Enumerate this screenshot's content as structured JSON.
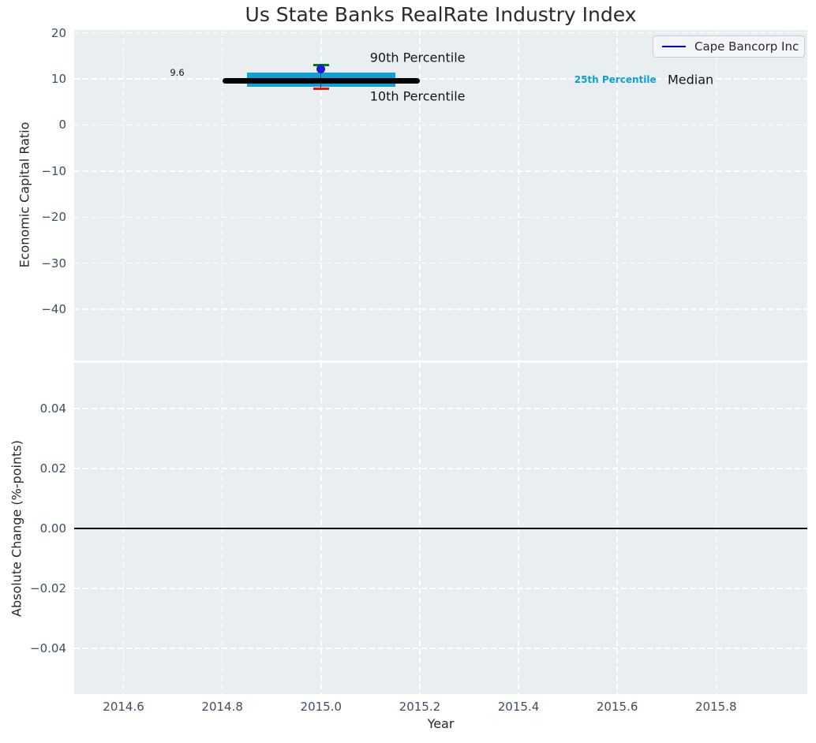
{
  "colors": {
    "plot_background": "#e9eef1",
    "grid": "#ffffff",
    "tick_label": "#3c4f63",
    "text": "#262626",
    "band_cyan": "#0da2d6",
    "median_black": "#000000",
    "p90_green": "#008000",
    "p10_red": "#e81010",
    "company_blue": "#1a1ad9",
    "legend_line_blue": "#0000dd"
  },
  "chart_data": [
    {
      "type": "line",
      "title": "Us State Banks RealRate Industry Index",
      "ylabel": "Economic Capital Ratio",
      "xlabel": "",
      "grid": "white-dashed",
      "legend": {
        "position": "upper right",
        "entries": [
          {
            "label": "Cape Bancorp Inc",
            "color": "#0000dd"
          }
        ]
      },
      "xlim": [
        2014.5,
        2015.985
      ],
      "ylim": [
        -51.1,
        20.6
      ],
      "yticks": [
        {
          "label": "20",
          "value": 20
        },
        {
          "label": "10",
          "value": 10
        },
        {
          "label": "0",
          "value": 0
        },
        {
          "label": "−10",
          "value": -10
        },
        {
          "label": "−20",
          "value": -20
        },
        {
          "label": "−30",
          "value": -30
        },
        {
          "label": "−40",
          "value": -40
        }
      ],
      "series": {
        "company": {
          "name": "Cape Bancorp Inc",
          "marker": "circle",
          "color": "#1a1ad9",
          "x": 2015.0,
          "y": 12.1
        },
        "median_line": {
          "name": "Median",
          "color": "#000000",
          "x": [
            2014.8,
            2015.2
          ],
          "y": 9.6,
          "linewidth": 7
        },
        "iqr_band": {
          "name": "25th-75th Percentile Band",
          "color": "#0da2d6",
          "x": [
            2014.85,
            2015.15
          ],
          "y_low": 8.3,
          "y_high": 11.4
        },
        "whisker": {
          "name": "10th-90th Percentile Whisker",
          "color": "#333333",
          "x": 2015.0,
          "y_low": 7.9,
          "y_high": 13.0
        },
        "p90_cap": {
          "name": "90th Percentile",
          "color": "#008000",
          "x": 2015.0,
          "y": 13.0,
          "halfwidth_years": 0.016
        },
        "p10_cap": {
          "name": "10th Percentile",
          "color": "#e81010",
          "x": 2015.0,
          "y": 7.9,
          "halfwidth_years": 0.016
        }
      },
      "annotations": {
        "median_value": {
          "text": "9.6",
          "x": 2014.694,
          "y": 11.35
        },
        "p90": {
          "text": "90th Percentile",
          "x": 2015.099,
          "y": 14.6
        },
        "p10": {
          "text": "10th Percentile",
          "x": 2015.099,
          "y": 6.3
        },
        "p25": {
          "text": "25th Percentile",
          "x": 2015.513,
          "y": 9.9,
          "color": "#0c9fd6"
        },
        "median": {
          "text": "Median",
          "x": 2015.702,
          "y": 9.9
        }
      }
    },
    {
      "type": "line",
      "title": "",
      "ylabel": "Absolute Change (%-points)",
      "xlabel": "Year",
      "grid": "white-dashed",
      "xlim": [
        2014.5,
        2015.985
      ],
      "ylim": [
        -0.0553,
        0.0553
      ],
      "zero_line": 0.0,
      "yticks": [
        {
          "label": "0.04",
          "value": 0.04
        },
        {
          "label": "0.02",
          "value": 0.02
        },
        {
          "label": "0.00",
          "value": 0.0
        },
        {
          "label": "−0.02",
          "value": -0.02
        },
        {
          "label": "−0.04",
          "value": -0.04
        }
      ],
      "xticks": [
        {
          "label": "2014.6",
          "value": 2014.6
        },
        {
          "label": "2014.8",
          "value": 2014.8
        },
        {
          "label": "2015.0",
          "value": 2015.0
        },
        {
          "label": "2015.2",
          "value": 2015.2
        },
        {
          "label": "2015.4",
          "value": 2015.4
        },
        {
          "label": "2015.6",
          "value": 2015.6
        },
        {
          "label": "2015.8",
          "value": 2015.8
        }
      ],
      "series": {
        "zero_axhline": {
          "name": "Zero line",
          "color": "#000000",
          "y": 0.0
        }
      }
    }
  ]
}
